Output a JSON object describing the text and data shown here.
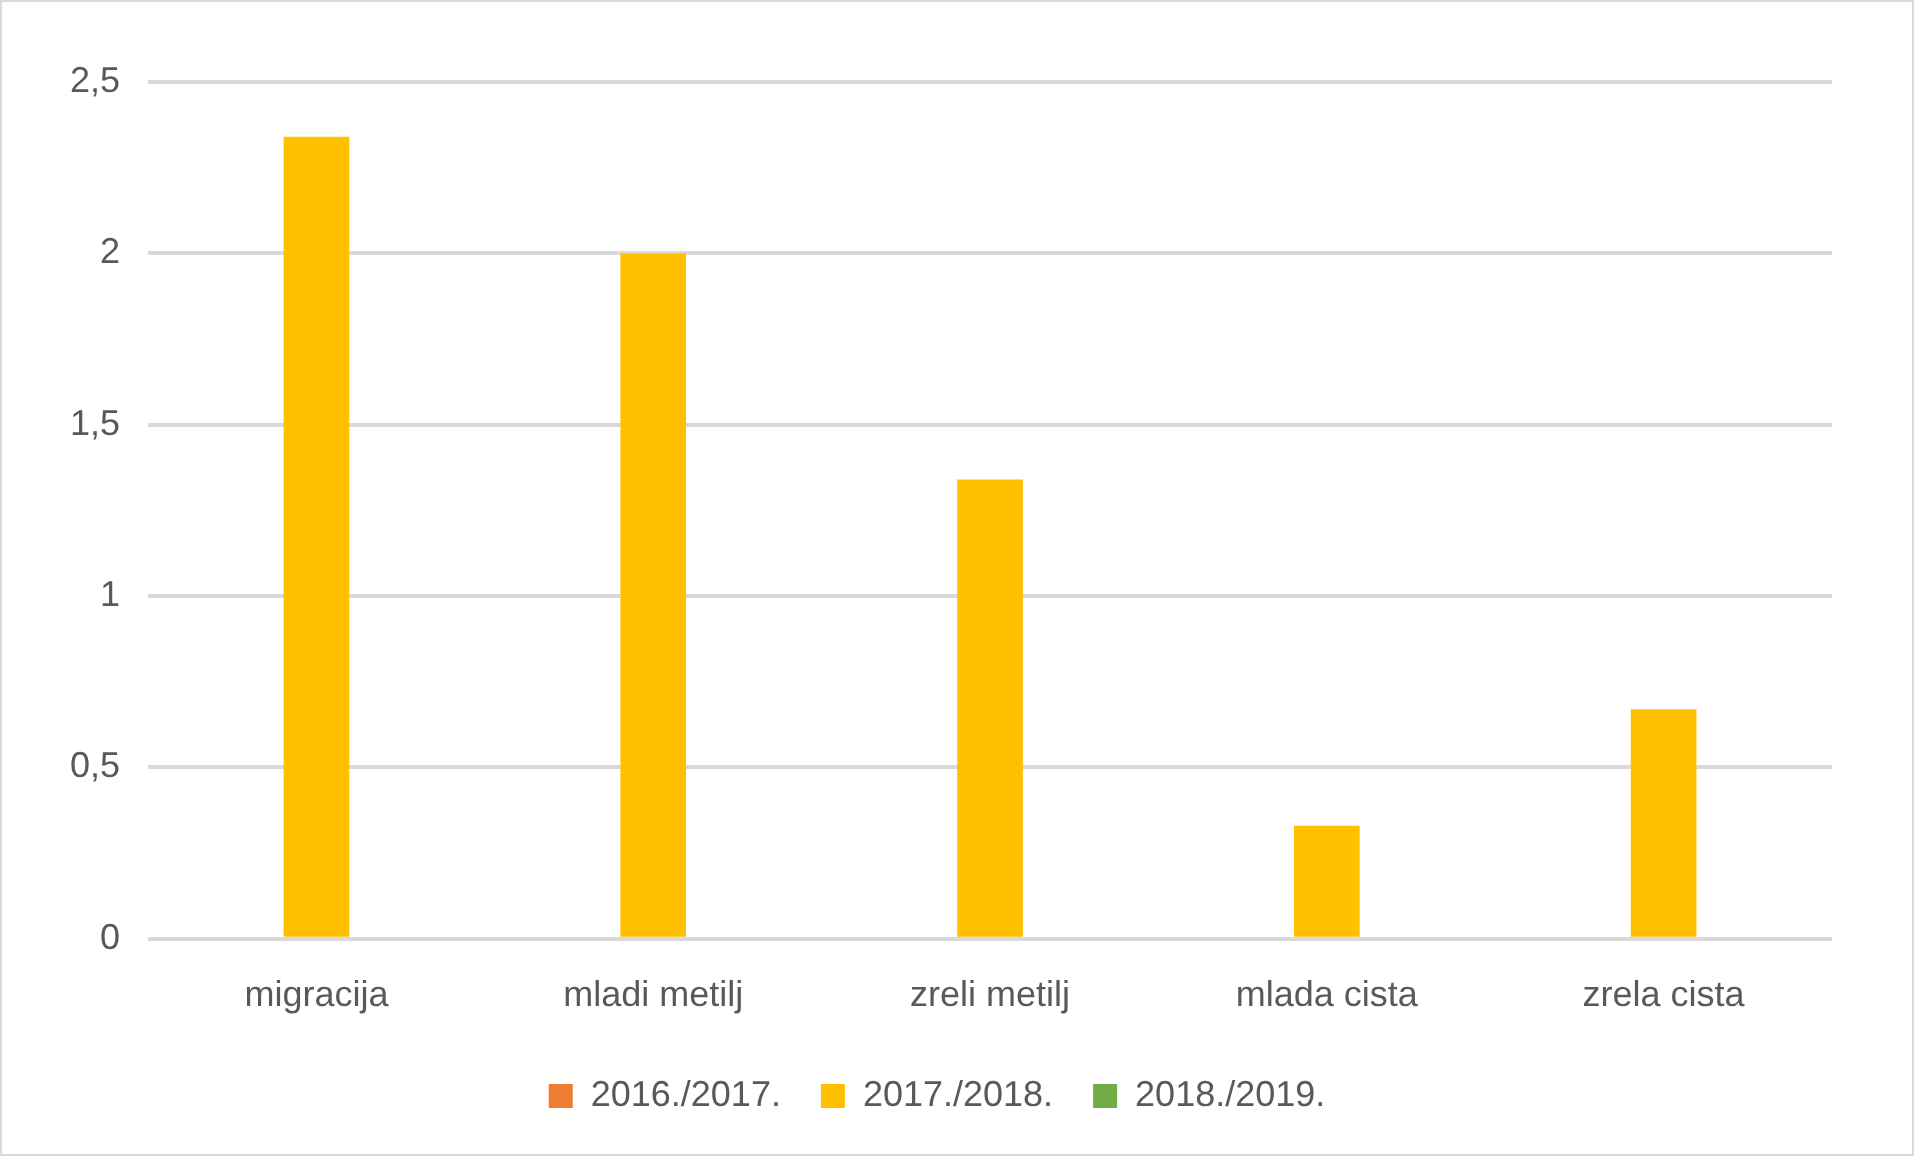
{
  "chart_data": {
    "type": "bar",
    "categories": [
      "migracija",
      "mladi metilj",
      "zreli metilj",
      "mlada cista",
      "zrela cista"
    ],
    "series": [
      {
        "name": "2016./2017.",
        "color": "#ed7d31",
        "values": [
          0,
          0,
          0,
          0,
          0
        ]
      },
      {
        "name": "2017./2018.",
        "color": "#ffc000",
        "values": [
          2.34,
          2.0,
          1.34,
          0.33,
          0.67
        ]
      },
      {
        "name": "2018./2019.",
        "color": "#70ad47",
        "values": [
          0,
          0,
          0,
          0,
          0
        ]
      }
    ],
    "ylim": [
      0,
      2.5
    ],
    "yticks": [
      0,
      {
        "value": 0.5,
        "label": "0,5"
      },
      1,
      {
        "value": 1.5,
        "label": "1,5"
      },
      2,
      {
        "value": 2.5,
        "label": "2,5"
      }
    ],
    "grid": "y",
    "legend": "bottom"
  }
}
